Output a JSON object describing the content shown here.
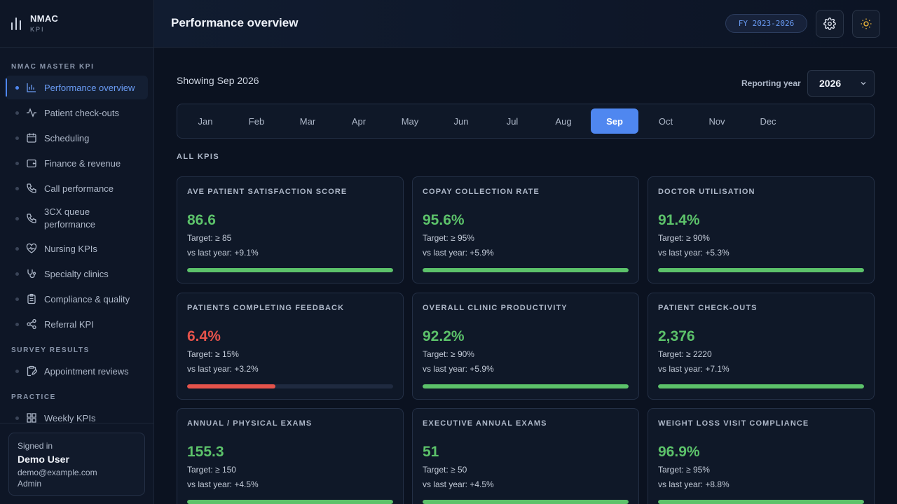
{
  "brand": {
    "name": "NMAC",
    "sub": "KPI"
  },
  "sidebar": {
    "sections": [
      {
        "label": "NMAC MASTER KPI"
      },
      {
        "label": "SURVEY RESULTS"
      },
      {
        "label": "PRACTICE"
      }
    ],
    "master_items": [
      {
        "label": "Performance overview",
        "icon": "bar-chart-icon"
      },
      {
        "label": "Patient check-outs",
        "icon": "activity-icon"
      },
      {
        "label": "Scheduling",
        "icon": "calendar-icon"
      },
      {
        "label": "Finance & revenue",
        "icon": "wallet-icon"
      },
      {
        "label": "Call performance",
        "icon": "phone-icon"
      },
      {
        "label": "3CX queue performance",
        "icon": "phone-icon"
      },
      {
        "label": "Nursing KPIs",
        "icon": "heart-pulse-icon"
      },
      {
        "label": "Specialty clinics",
        "icon": "stethoscope-icon"
      },
      {
        "label": "Compliance & quality",
        "icon": "clipboard-icon"
      },
      {
        "label": "Referral KPI",
        "icon": "share-icon"
      }
    ],
    "survey_items": [
      {
        "label": "Appointment reviews",
        "icon": "clipboard-edit-icon"
      }
    ],
    "practice_items": [
      {
        "label": "Weekly KPIs",
        "icon": "grid-icon"
      }
    ]
  },
  "user": {
    "label": "Signed in",
    "name": "Demo User",
    "email": "demo@example.com",
    "role": "Admin"
  },
  "header": {
    "title": "Performance overview",
    "fy_badge": "FY 2023-2026",
    "settings_icon": "gear-icon",
    "theme_icon": "sun-icon"
  },
  "main": {
    "showing": "Showing Sep 2026",
    "reporting_year_label": "Reporting year",
    "reporting_year_value": "2026",
    "months": [
      "Jan",
      "Feb",
      "Mar",
      "Apr",
      "May",
      "Jun",
      "Jul",
      "Aug",
      "Sep",
      "Oct",
      "Nov",
      "Dec"
    ],
    "active_month": "Sep",
    "section_label": "ALL KPIS",
    "kpis": [
      {
        "title": "AVE PATIENT SATISFACTION SCORE",
        "value": "86.6",
        "target": "Target: ≥ 85",
        "yoy": "vs last year: +9.1%",
        "status": "good",
        "progress": 1.0
      },
      {
        "title": "COPAY COLLECTION RATE",
        "value": "95.6%",
        "target": "Target: ≥ 95%",
        "yoy": "vs last year: +5.9%",
        "status": "good",
        "progress": 1.0
      },
      {
        "title": "DOCTOR UTILISATION",
        "value": "91.4%",
        "target": "Target: ≥ 90%",
        "yoy": "vs last year: +5.3%",
        "status": "good",
        "progress": 1.0
      },
      {
        "title": "PATIENTS COMPLETING FEEDBACK",
        "value": "6.4%",
        "target": "Target: ≥ 15%",
        "yoy": "vs last year: +3.2%",
        "status": "bad",
        "progress": 0.43
      },
      {
        "title": "OVERALL CLINIC PRODUCTIVITY",
        "value": "92.2%",
        "target": "Target: ≥ 90%",
        "yoy": "vs last year: +5.9%",
        "status": "good",
        "progress": 1.0
      },
      {
        "title": "PATIENT CHECK-OUTS",
        "value": "2,376",
        "target": "Target: ≥ 2220",
        "yoy": "vs last year: +7.1%",
        "status": "good",
        "progress": 1.0
      },
      {
        "title": "ANNUAL / PHYSICAL EXAMS",
        "value": "155.3",
        "target": "Target: ≥ 150",
        "yoy": "vs last year: +4.5%",
        "status": "good",
        "progress": 1.0
      },
      {
        "title": "EXECUTIVE ANNUAL EXAMS",
        "value": "51",
        "target": "Target: ≥ 50",
        "yoy": "vs last year: +4.5%",
        "status": "good",
        "progress": 1.0
      },
      {
        "title": "WEIGHT LOSS VISIT COMPLIANCE",
        "value": "96.9%",
        "target": "Target: ≥ 95%",
        "yoy": "vs last year: +8.8%",
        "status": "good",
        "progress": 1.0
      }
    ]
  },
  "colors": {
    "accent": "#4f87f0",
    "good": "#5cc26a",
    "bad": "#e5534b",
    "background": "#0b1220"
  }
}
